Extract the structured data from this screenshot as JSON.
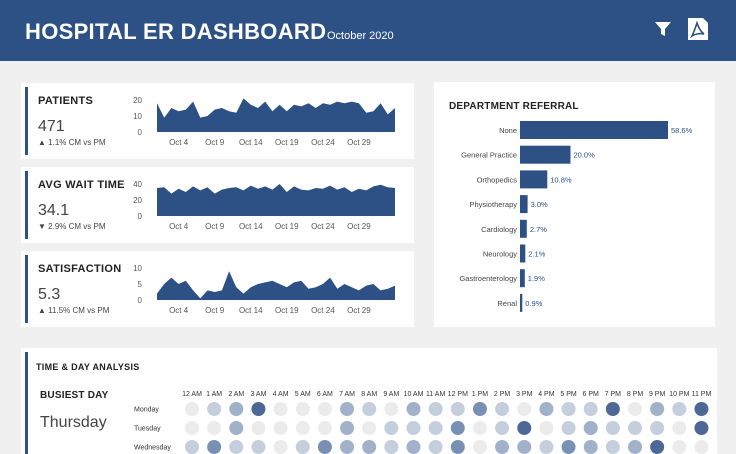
{
  "header": {
    "title": "HOSPITAL ER DASHBOARD",
    "subtitle": "October 2020",
    "filter_icon": "filter-icon",
    "pdf_icon": "pdf-export-icon"
  },
  "colors": {
    "brand": "#2d5184",
    "background": "#f0f0f0"
  },
  "kpis": [
    {
      "title": "PATIENTS",
      "value": "471",
      "delta": "1.1% CM vs PM",
      "trend": "up",
      "chart_data": {
        "type": "area",
        "x_ticks": [
          "Oct 4",
          "Oct 9",
          "Oct 14",
          "Oct 19",
          "Oct 24",
          "Oct 29"
        ],
        "y_ticks": [
          "20",
          "10",
          "0"
        ],
        "ylim": [
          0,
          20
        ],
        "values": [
          18,
          9,
          15,
          13,
          14,
          19,
          9,
          10,
          14,
          15,
          13,
          12,
          21,
          17,
          15,
          19,
          13,
          17,
          13,
          17,
          16,
          18,
          15,
          18,
          17,
          19,
          18,
          19,
          18,
          12,
          13,
          18,
          11,
          15
        ]
      }
    },
    {
      "title": "AVG WAIT TIME",
      "value": "34.1",
      "delta": "2.9% CM vs PM",
      "trend": "down",
      "chart_data": {
        "type": "area",
        "x_ticks": [
          "Oct 4",
          "Oct 9",
          "Oct 14",
          "Oct 19",
          "Oct 24",
          "Oct 29"
        ],
        "y_ticks": [
          "40",
          "20",
          "0"
        ],
        "ylim": [
          0,
          40
        ],
        "values": [
          35,
          36,
          28,
          34,
          30,
          37,
          32,
          36,
          28,
          33,
          35,
          36,
          32,
          38,
          34,
          37,
          33,
          40,
          30,
          37,
          33,
          32,
          35,
          34,
          38,
          33,
          36,
          30,
          34,
          32,
          37,
          39,
          36,
          35
        ]
      }
    },
    {
      "title": "SATISFACTION",
      "value": "5.3",
      "delta": "11.5% CM vs PM",
      "trend": "up",
      "chart_data": {
        "type": "area",
        "x_ticks": [
          "Oct 4",
          "Oct 9",
          "Oct 14",
          "Oct 19",
          "Oct 24",
          "Oct 29"
        ],
        "y_ticks": [
          "10",
          "5",
          "0"
        ],
        "ylim": [
          0,
          10
        ],
        "values": [
          2,
          5,
          7,
          5,
          6,
          3,
          0.5,
          3,
          2.5,
          3,
          9,
          4,
          2,
          4,
          5,
          5.5,
          6,
          5,
          4,
          5.5,
          6,
          3.5,
          4,
          5,
          7,
          3.5,
          5,
          4,
          3,
          4.5,
          5,
          3,
          3.5,
          4.5
        ]
      }
    }
  ],
  "department_referral": {
    "title": "DEPARTMENT REFERRAL",
    "chart_data": {
      "type": "bar",
      "orientation": "horizontal",
      "categories": [
        "None",
        "General Practice",
        "Orthopedics",
        "Physiotherapy",
        "Cardiology",
        "Neurology",
        "Gastroenterology",
        "Renal"
      ],
      "values": [
        58.6,
        20.0,
        10.8,
        3.0,
        2.7,
        2.1,
        1.9,
        0.9
      ],
      "labels": [
        "58.6%",
        "20.0%",
        "10.8%",
        "3.0%",
        "2.7%",
        "2.1%",
        "1.9%",
        "0.9%"
      ]
    }
  },
  "time_day": {
    "title": "TIME & DAY ANALYSIS",
    "busiest_label": "BUSIEST DAY",
    "busiest_value": "Thursday",
    "chart_data": {
      "type": "heatmap",
      "hours": [
        "12 AM",
        "1 AM",
        "2 AM",
        "3 AM",
        "4 AM",
        "5 AM",
        "6 AM",
        "7 AM",
        "8 AM",
        "9 AM",
        "10 AM",
        "11 AM",
        "12 PM",
        "1 PM",
        "2 PM",
        "3 PM",
        "4 PM",
        "5 PM",
        "6 PM",
        "7 PM",
        "8 PM",
        "9 PM",
        "10 PM",
        "11 PM"
      ],
      "days": [
        "Monday",
        "Tuesday",
        "Wednesday"
      ],
      "levels": [
        [
          0,
          1,
          2,
          4,
          0,
          0,
          0,
          2,
          1,
          0,
          2,
          1,
          1,
          3,
          1,
          0,
          2,
          1,
          1,
          4,
          0,
          2,
          1,
          4
        ],
        [
          0,
          0,
          2,
          0,
          0,
          0,
          0,
          2,
          0,
          1,
          1,
          1,
          3,
          0,
          1,
          4,
          0,
          1,
          2,
          1,
          1,
          1,
          0,
          4
        ],
        [
          1,
          3,
          1,
          1,
          0,
          1,
          3,
          2,
          2,
          1,
          2,
          1,
          3,
          0,
          2,
          2,
          1,
          3,
          2,
          1,
          2,
          4,
          0,
          0
        ]
      ]
    }
  }
}
